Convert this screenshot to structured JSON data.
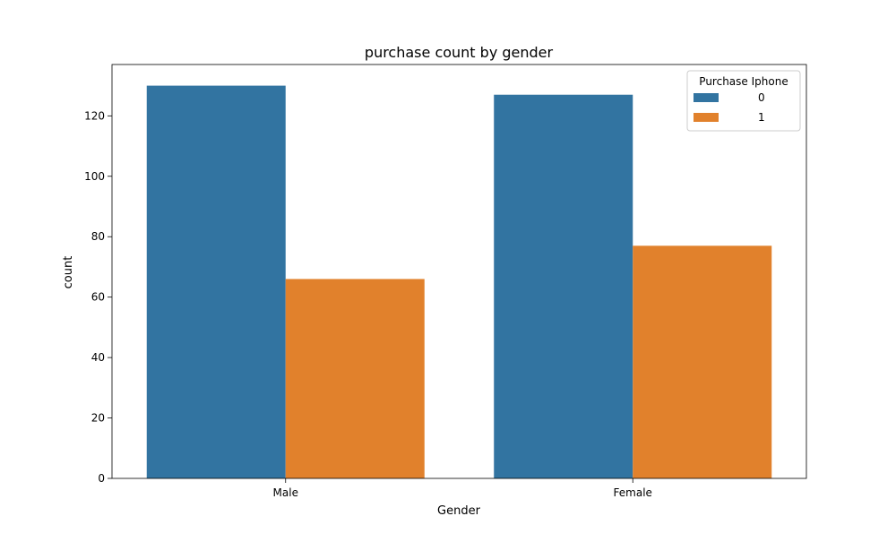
{
  "chart_data": {
    "type": "bar",
    "title": "purchase count by gender",
    "xlabel": "Gender",
    "ylabel": "count",
    "categories": [
      "Male",
      "Female"
    ],
    "series": [
      {
        "name": "0",
        "values": [
          130,
          127
        ],
        "color": "#3274a1"
      },
      {
        "name": "1",
        "values": [
          66,
          77
        ],
        "color": "#e1812c"
      }
    ],
    "ylim": [
      0,
      137
    ],
    "yticks": [
      0,
      20,
      40,
      60,
      80,
      100,
      120
    ],
    "grid": false,
    "legend": {
      "title": "Purchase Iphone",
      "placement": "top-right"
    }
  }
}
